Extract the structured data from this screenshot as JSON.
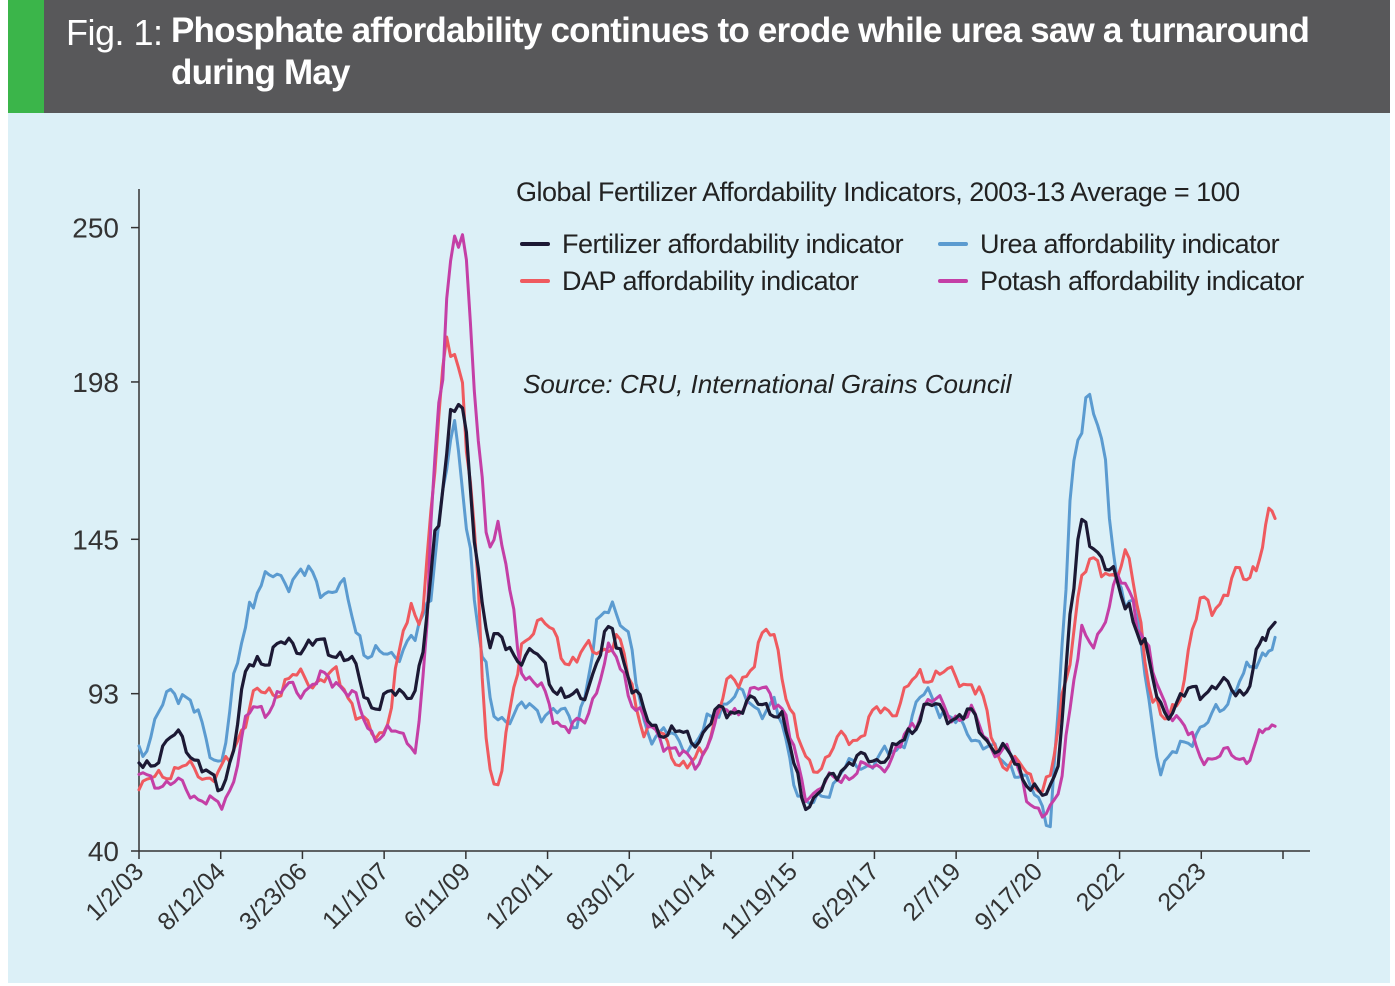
{
  "figure": {
    "label": "Fig. 1:",
    "title": "Phosphate affordability continues to erode while urea saw a turnaround during May"
  },
  "colors": {
    "header_bg": "#58585a",
    "accent": "#3bb54a",
    "panel_bg": "#dcf0f7",
    "fertilizer": "#1c1934",
    "urea": "#5b9bd0",
    "dap": "#ef5a5f",
    "potash": "#c43fa6"
  },
  "chart_data": {
    "type": "line",
    "title": "Global Fertilizer Affordability Indicators, 2003-13 Average = 100",
    "source": "Source: CRU, International Grains Council",
    "xlabel": "",
    "ylabel": "",
    "ylim": [
      40,
      263
    ],
    "y_ticks": [
      40,
      93,
      145,
      198,
      250
    ],
    "x_ticks": [
      "1/2/03",
      "8/12/04",
      "3/23/06",
      "11/1/07",
      "6/11/09",
      "1/20/11",
      "8/30/12",
      "4/10/14",
      "11/19/15",
      "6/29/17",
      "2/7/19",
      "9/17/20",
      "2022",
      "2023"
    ],
    "x": [
      0,
      0.5,
      1,
      1.5,
      2,
      2.5,
      3,
      3.5,
      4,
      4.5,
      5,
      5.5,
      6,
      6.5,
      7,
      7.5,
      8,
      8.5,
      9,
      9.5,
      10,
      10.5,
      11,
      11.5,
      12,
      12.5,
      13,
      13.5,
      14,
      14.4
    ],
    "legend": "top-right, two columns",
    "grid": false,
    "series": [
      {
        "name": "Fertilizer affordability indicator",
        "color": "#1c1934",
        "values": [
          68,
          78,
          62,
          105,
          110,
          108,
          90,
          95,
          190,
          110,
          105,
          90,
          112,
          82,
          78,
          88,
          90,
          57,
          70,
          72,
          88,
          85,
          72,
          57,
          148,
          125,
          88,
          95,
          95,
          117
        ]
      },
      {
        "name": "Urea affordability indicator",
        "color": "#5b9bd0",
        "values": [
          75,
          95,
          72,
          130,
          133,
          128,
          105,
          110,
          175,
          85,
          88,
          85,
          125,
          80,
          76,
          92,
          88,
          55,
          68,
          72,
          92,
          80,
          70,
          55,
          197,
          128,
          70,
          82,
          98,
          112
        ]
      },
      {
        "name": "DAP affordability indicator",
        "color": "#ef5a5f",
        "values": [
          62,
          68,
          65,
          92,
          98,
          98,
          78,
          120,
          215,
          65,
          118,
          105,
          110,
          80,
          68,
          95,
          112,
          68,
          78,
          88,
          100,
          98,
          70,
          62,
          135,
          135,
          82,
          122,
          132,
          152
        ]
      },
      {
        "name": "Potash affordability indicator",
        "color": "#c43fa6",
        "values": [
          65,
          62,
          55,
          88,
          95,
          98,
          80,
          78,
          250,
          145,
          95,
          80,
          105,
          80,
          70,
          88,
          95,
          60,
          66,
          70,
          90,
          85,
          72,
          50,
          110,
          130,
          90,
          72,
          72,
          82
        ]
      }
    ]
  }
}
